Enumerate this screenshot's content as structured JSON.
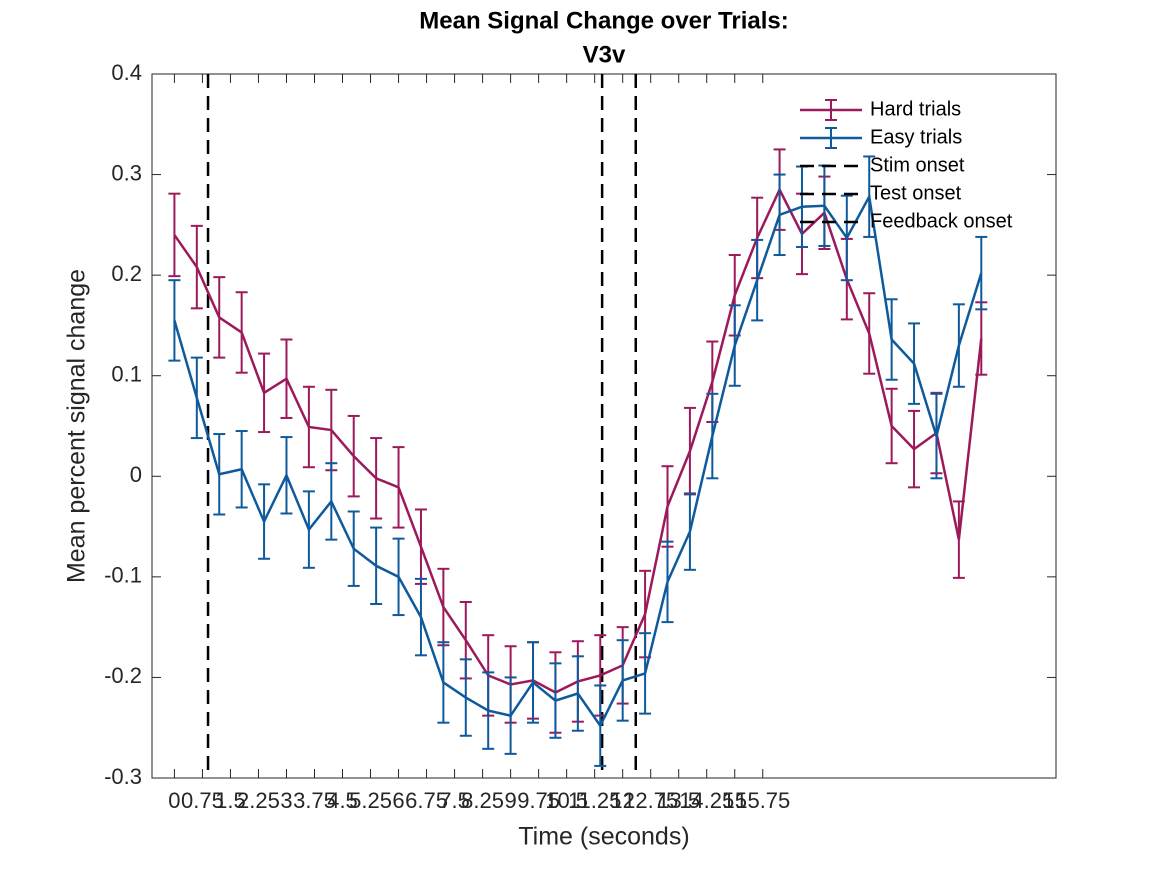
{
  "chart_data": {
    "type": "line",
    "title": "Mean Signal Change over Trials:",
    "subtitle": "V3v",
    "x_label": "Time (seconds)",
    "y_label": "Mean percent signal change",
    "x": [
      0,
      0.6,
      1.2,
      1.8,
      2.4,
      3,
      3.6,
      4.2,
      4.8,
      5.4,
      6,
      6.6,
      7.2,
      7.8,
      8.4,
      9,
      9.6,
      10.2,
      10.8,
      11.4,
      12,
      12.6,
      13.2,
      13.8,
      14.4,
      15,
      15.6,
      16.2,
      16.8,
      17.4,
      18,
      18.6,
      19.2,
      19.8,
      20.4,
      21,
      21.6
    ],
    "series": [
      {
        "name": "Hard trials",
        "color": "#9c1a5b",
        "values": [
          0.24,
          0.208,
          0.158,
          0.143,
          0.083,
          0.097,
          0.049,
          0.046,
          0.02,
          -0.002,
          -0.011,
          -0.07,
          -0.13,
          -0.163,
          -0.198,
          -0.207,
          -0.203,
          -0.215,
          -0.204,
          -0.198,
          -0.188,
          -0.137,
          -0.03,
          0.025,
          0.094,
          0.18,
          0.237,
          0.285,
          0.241,
          0.262,
          0.196,
          0.142,
          0.05,
          0.027,
          0.043,
          -0.063,
          0.137
        ],
        "errors": [
          0.041,
          0.041,
          0.04,
          0.04,
          0.039,
          0.039,
          0.04,
          0.04,
          0.04,
          0.04,
          0.04,
          0.037,
          0.038,
          0.038,
          0.04,
          0.038,
          0.038,
          0.04,
          0.04,
          0.04,
          0.038,
          0.043,
          0.04,
          0.043,
          0.04,
          0.04,
          0.04,
          0.04,
          0.04,
          0.036,
          0.04,
          0.04,
          0.037,
          0.038,
          0.04,
          0.038,
          0.036
        ]
      },
      {
        "name": "Easy trials",
        "color": "#0f5a9c",
        "values": [
          0.155,
          0.078,
          0.002,
          0.007,
          -0.045,
          0.001,
          -0.053,
          -0.025,
          -0.072,
          -0.089,
          -0.1,
          -0.14,
          -0.205,
          -0.22,
          -0.233,
          -0.238,
          -0.205,
          -0.223,
          -0.216,
          -0.248,
          -0.203,
          -0.196,
          -0.105,
          -0.055,
          0.04,
          0.13,
          0.195,
          0.26,
          0.268,
          0.269,
          0.237,
          0.278,
          0.136,
          0.112,
          0.04,
          0.13,
          0.202
        ],
        "errors": [
          0.04,
          0.04,
          0.04,
          0.038,
          0.037,
          0.038,
          0.038,
          0.038,
          0.037,
          0.038,
          0.038,
          0.038,
          0.04,
          0.038,
          0.038,
          0.038,
          0.04,
          0.037,
          0.037,
          0.04,
          0.04,
          0.04,
          0.04,
          0.038,
          0.042,
          0.04,
          0.04,
          0.04,
          0.04,
          0.04,
          0.042,
          0.04,
          0.04,
          0.04,
          0.042,
          0.041,
          0.036
        ]
      }
    ],
    "vlines": [
      {
        "name": "Stim onset",
        "x": 0.9,
        "color": "#000000"
      },
      {
        "name": "Test onset",
        "x": 11.45,
        "color": "#000000"
      },
      {
        "name": "Feedback onset",
        "x": 12.35,
        "color": "#000000"
      }
    ],
    "xlim": [
      -0.6,
      23.6
    ],
    "ylim": [
      -0.3,
      0.4
    ],
    "xticks": [
      0,
      0.75,
      1.5,
      2.25,
      3,
      3.75,
      4.5,
      5.25,
      6,
      6.75,
      7.5,
      8.25,
      9,
      9.75,
      10.5,
      11.25,
      12,
      12.75,
      13.5,
      14.25,
      15,
      15.75
    ],
    "yticks": [
      -0.3,
      -0.2,
      -0.1,
      0,
      0.1,
      0.2,
      0.3,
      0.4
    ],
    "grid": false,
    "legend": "upper right"
  }
}
